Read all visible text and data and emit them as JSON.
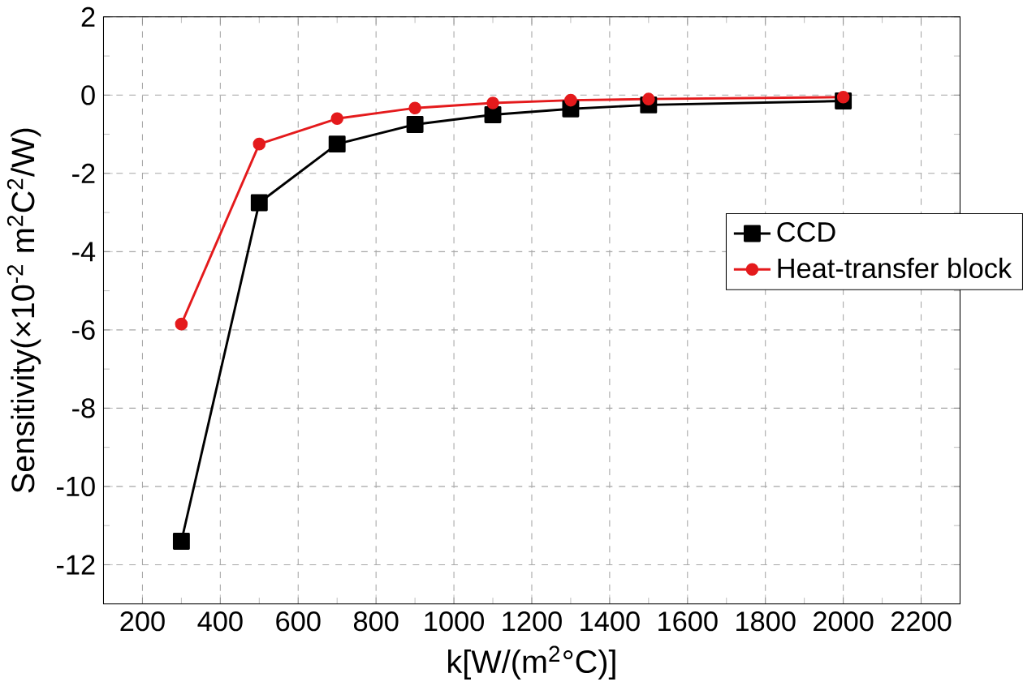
{
  "chart_data": {
    "type": "line",
    "xlabel": "k[W/(m$^{2}$°C)]",
    "ylabel": "Sensitivity(×10$^{-2}$ m$^{2}$C$^{2}$/W)",
    "x": [
      300,
      500,
      700,
      900,
      1100,
      1300,
      1500,
      2000
    ],
    "series": [
      {
        "name": "CCD",
        "color": "#000000",
        "marker": "square",
        "values": [
          -11.4,
          -2.75,
          -1.25,
          -0.75,
          -0.5,
          -0.35,
          -0.25,
          -0.15
        ]
      },
      {
        "name": "Heat-transfer block",
        "color": "#e41a1c",
        "marker": "circle",
        "values": [
          -5.85,
          -1.25,
          -0.6,
          -0.33,
          -0.2,
          -0.13,
          -0.1,
          -0.05
        ]
      }
    ],
    "xlim": [
      100,
      2300
    ],
    "ylim": [
      -13,
      2
    ],
    "xticks": [
      200,
      400,
      600,
      800,
      1000,
      1200,
      1400,
      1600,
      1800,
      2000,
      2200
    ],
    "yticks": [
      2,
      0,
      -2,
      -4,
      -6,
      -8,
      -10,
      -12
    ],
    "grid": true,
    "legend": "right",
    "line_style": "solid"
  }
}
